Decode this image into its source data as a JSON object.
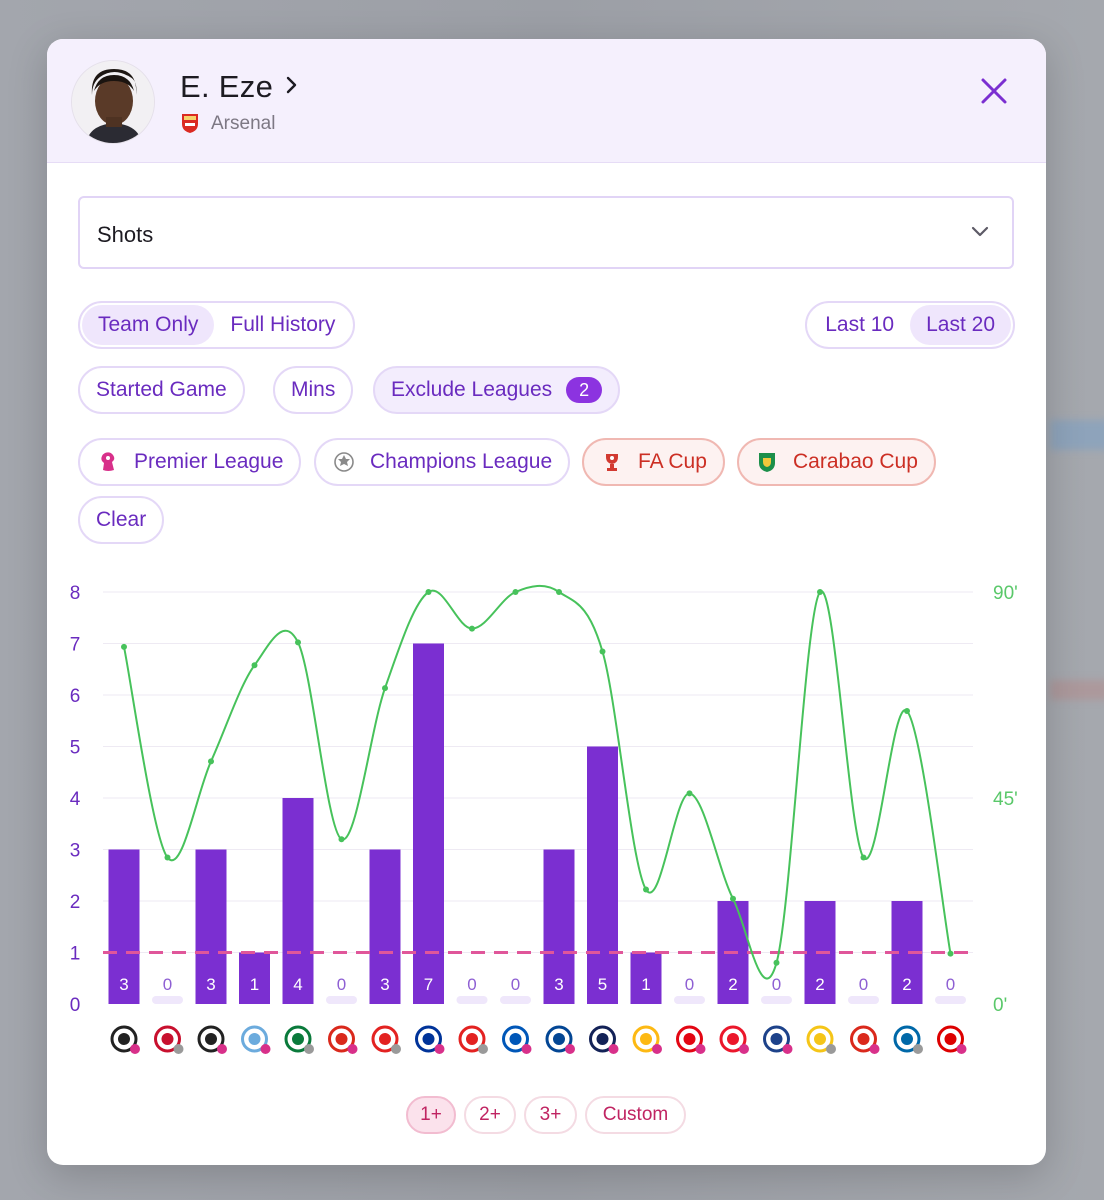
{
  "player": {
    "name": "E. Eze",
    "team": "Arsenal"
  },
  "stat_select": {
    "value": "Shots"
  },
  "scope_toggle": {
    "options": [
      "Team Only",
      "Full History"
    ],
    "active": "Team Only"
  },
  "range_toggle": {
    "options": [
      "Last 10",
      "Last 20"
    ],
    "active": "Last 20"
  },
  "filters": {
    "started_game": "Started Game",
    "mins": "Mins",
    "exclude_leagues": "Exclude Leagues",
    "exclude_count": "2",
    "clear": "Clear"
  },
  "leagues": [
    {
      "name": "Premier League",
      "icon": "premier-league-icon",
      "excluded": false
    },
    {
      "name": "Champions League",
      "icon": "champions-league-icon",
      "excluded": false
    },
    {
      "name": "FA Cup",
      "icon": "fa-cup-icon",
      "excluded": true
    },
    {
      "name": "Carabao Cup",
      "icon": "carabao-cup-icon",
      "excluded": true
    }
  ],
  "thresholds": {
    "options": [
      "1+",
      "2+",
      "3+",
      "Custom"
    ],
    "active": "1+"
  },
  "colors": {
    "bar": "#7b2fd1",
    "minutes_line": "#47c25b",
    "threshold_line": "#e0569a",
    "accent": "#6a2bbf"
  },
  "chart_data": {
    "type": "bar",
    "y_ticks": [
      "0",
      "1",
      "2",
      "3",
      "4",
      "5",
      "6",
      "7",
      "8"
    ],
    "ylim": [
      0,
      8
    ],
    "y2_ticks": [
      "0'",
      "45'",
      "90'"
    ],
    "y2lim": [
      0,
      90
    ],
    "threshold": 1,
    "opponents": [
      "fulham-crest-icon",
      "atletico-madrid-crest-icon",
      "newcastle-crest-icon",
      "manchester-city-crest-icon",
      "sporting-cp-crest-icon",
      "bournemouth-crest-icon",
      "bayer-leverkusen-crest-icon",
      "everton-crest-icon",
      "bayer-leverkusen-crest-icon",
      "brighton-crest-icon",
      "chelsea-crest-icon",
      "tottenham-crest-icon",
      "wolves-crest-icon",
      "brentford-crest-icon",
      "sunderland-crest-icon",
      "leeds-crest-icon",
      "kairat-crest-icon",
      "manchester-united-crest-icon",
      "inter-crest-icon",
      "nottingham-forest-crest-icon"
    ],
    "series": [
      {
        "values": [
          3,
          0,
          3,
          1,
          4,
          0,
          3,
          7,
          0,
          0,
          3,
          5,
          1,
          0,
          2,
          0,
          2,
          0,
          2,
          0
        ]
      },
      {
        "values": [
          78,
          32,
          53,
          74,
          79,
          36,
          69,
          90,
          82,
          90,
          90,
          77,
          25,
          46,
          23,
          9,
          90,
          32,
          64,
          11
        ]
      }
    ]
  }
}
